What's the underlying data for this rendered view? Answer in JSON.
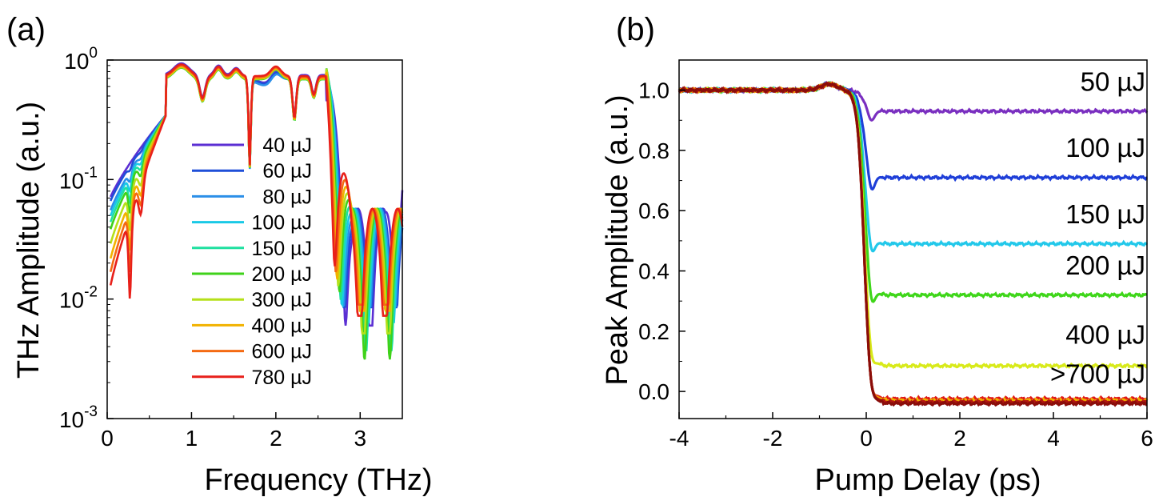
{
  "chart_data": [
    {
      "panel": "(a)",
      "type": "line",
      "xlabel": "Frequency (THz)",
      "ylabel": "THz Amplitude (a.u.)",
      "xlim": [
        0,
        3.5
      ],
      "ylim": [
        0.001,
        1
      ],
      "yscale": "log",
      "x_ticks": [
        "0",
        "1",
        "2",
        "3"
      ],
      "x_tick_values": [
        0,
        1,
        2,
        3
      ],
      "y_ticks": [
        {
          "base": "10",
          "exp": "0",
          "value": 1
        },
        {
          "base": "10",
          "exp": "-1",
          "value": 0.1
        },
        {
          "base": "10",
          "exp": "-2",
          "value": 0.01
        },
        {
          "base": "10",
          "exp": "-3",
          "value": 0.001
        }
      ],
      "legend_position": "center-left",
      "series": [
        {
          "name": "40 µJ",
          "color": "#5b2fd3",
          "scale": 1.0,
          "low": 0.06
        },
        {
          "name": "60 µJ",
          "color": "#1f4fd8",
          "scale": 0.98,
          "low": 0.055
        },
        {
          "name": "80 µJ",
          "color": "#2b8fe8",
          "scale": 0.95,
          "low": 0.045
        },
        {
          "name": "100 µJ",
          "color": "#19c9e6",
          "scale": 0.93,
          "low": 0.04
        },
        {
          "name": "150 µJ",
          "color": "#1fe0a0",
          "scale": 0.92,
          "low": 0.035
        },
        {
          "name": "200 µJ",
          "color": "#3fd21a",
          "scale": 0.92,
          "low": 0.03
        },
        {
          "name": "300 µJ",
          "color": "#b5e01a",
          "scale": 0.93,
          "low": 0.022
        },
        {
          "name": "400 µJ",
          "color": "#f2b200",
          "scale": 0.94,
          "low": 0.016
        },
        {
          "name": "600 µJ",
          "color": "#f46a12",
          "scale": 0.96,
          "low": 0.012
        },
        {
          "name": "780 µJ",
          "color": "#e8201a",
          "scale": 0.98,
          "low": 0.009
        }
      ]
    },
    {
      "panel": "(b)",
      "type": "line",
      "xlabel": "Pump Delay (ps)",
      "ylabel": "Peak Amplitude (a.u.)",
      "xlim": [
        -4,
        6
      ],
      "ylim": [
        -0.09,
        1.1
      ],
      "x_ticks": [
        "-4",
        "-2",
        "0",
        "2",
        "4",
        "6"
      ],
      "x_tick_values": [
        -4,
        -2,
        0,
        2,
        4,
        6
      ],
      "y_ticks": [
        "0.0",
        "0.2",
        "0.4",
        "0.6",
        "0.8",
        "1.0"
      ],
      "y_tick_values": [
        0,
        0.2,
        0.4,
        0.6,
        0.8,
        1.0
      ],
      "series": [
        {
          "name": "50 µJ",
          "color": "#7a2fc0",
          "plateau": 0.93,
          "dip": 0.89,
          "label_y": 1.03
        },
        {
          "name": "100 µJ",
          "color": "#1f3fd8",
          "plateau": 0.71,
          "dip": 0.64,
          "label_y": 0.81
        },
        {
          "name": "150 µJ",
          "color": "#22c8ea",
          "plateau": 0.49,
          "dip": 0.42,
          "label_y": 0.59
        },
        {
          "name": "200 µJ",
          "color": "#3fd61a",
          "plateau": 0.32,
          "dip": 0.24,
          "label_y": 0.42
        },
        {
          "name": "400 µJ",
          "color": "#d8ea1a",
          "plateau": 0.085,
          "dip": 0.04,
          "label_y": 0.19
        },
        {
          "name": ">700 µJ",
          "color": "#e01818",
          "plateau": -0.025,
          "dip": -0.07,
          "label_y": 0.06
        }
      ],
      "extra_series_colors": [
        "#f2b200",
        "#b3160f",
        "#8a0d0a"
      ]
    }
  ],
  "panel_labels": [
    "(a)",
    "(b)"
  ]
}
